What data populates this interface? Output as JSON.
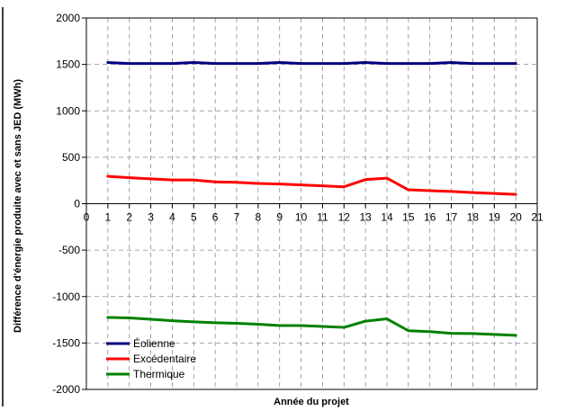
{
  "chart_data": {
    "type": "line",
    "title": "",
    "xlabel": "Année du projet",
    "ylabel": "Différence d'énergie produite avec et sans JED (MWh)",
    "xlim": [
      0,
      21
    ],
    "ylim": [
      -2000,
      2000
    ],
    "x_ticks": [
      0,
      1,
      2,
      3,
      4,
      5,
      6,
      7,
      8,
      9,
      10,
      11,
      12,
      13,
      14,
      15,
      16,
      17,
      18,
      19,
      20,
      21
    ],
    "y_ticks": [
      2000,
      1500,
      1000,
      500,
      0,
      -500,
      -1000,
      -1500,
      -2000
    ],
    "grid": true,
    "legend_position": "bottom-left",
    "x": [
      1,
      2,
      3,
      4,
      5,
      6,
      7,
      8,
      9,
      10,
      11,
      12,
      13,
      14,
      15,
      16,
      17,
      18,
      19,
      20
    ],
    "series": [
      {
        "name": "Éolienne",
        "color": "#000080",
        "values": [
          1520,
          1510,
          1510,
          1510,
          1520,
          1510,
          1510,
          1510,
          1520,
          1510,
          1510,
          1510,
          1520,
          1510,
          1510,
          1510,
          1520,
          1510,
          1510,
          1510
        ]
      },
      {
        "name": "Excédentaire",
        "color": "#ff0000",
        "values": [
          295,
          280,
          268,
          255,
          255,
          235,
          230,
          218,
          212,
          202,
          192,
          182,
          260,
          275,
          150,
          140,
          132,
          120,
          110,
          100
        ]
      },
      {
        "name": "Thermique",
        "color": "#008000",
        "values": [
          -1225,
          -1230,
          -1245,
          -1260,
          -1272,
          -1282,
          -1288,
          -1298,
          -1312,
          -1312,
          -1322,
          -1332,
          -1265,
          -1240,
          -1368,
          -1378,
          -1396,
          -1398,
          -1408,
          -1418
        ]
      }
    ]
  }
}
